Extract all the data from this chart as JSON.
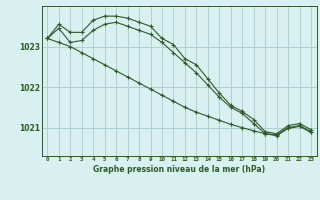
{
  "title": "Graphe pression niveau de la mer (hPa)",
  "bg_color": "#d8f0f0",
  "grid_color": "#b0d0d0",
  "line_color": "#2d5a27",
  "x_ticks": [
    0,
    1,
    2,
    3,
    4,
    5,
    6,
    7,
    8,
    9,
    10,
    11,
    12,
    13,
    14,
    15,
    16,
    17,
    18,
    19,
    20,
    21,
    22,
    23
  ],
  "y_ticks": [
    1021,
    1022,
    1023
  ],
  "ylim": [
    1020.3,
    1024.0
  ],
  "xlim": [
    -0.5,
    23.5
  ],
  "series": [
    {
      "x": [
        0,
        1,
        2,
        3,
        4,
        5,
        6,
        7,
        8,
        9,
        10,
        11,
        12,
        13,
        14,
        15,
        16,
        17,
        18,
        19,
        20,
        21,
        22,
        23
      ],
      "y": [
        1023.2,
        1023.55,
        1023.35,
        1023.35,
        1023.65,
        1023.75,
        1023.75,
        1023.7,
        1023.6,
        1023.5,
        1023.2,
        1023.05,
        1022.7,
        1022.55,
        1022.2,
        1021.85,
        1021.55,
        1021.4,
        1021.2,
        1020.9,
        1020.85,
        1021.05,
        1021.1,
        1020.95
      ]
    },
    {
      "x": [
        0,
        1,
        2,
        3,
        4,
        5,
        6,
        7,
        8,
        9,
        10,
        11,
        12,
        13,
        14,
        15,
        16,
        17,
        18,
        19,
        20,
        21,
        22,
        23
      ],
      "y": [
        1023.2,
        1023.45,
        1023.1,
        1023.15,
        1023.4,
        1023.55,
        1023.6,
        1023.5,
        1023.4,
        1023.3,
        1023.1,
        1022.85,
        1022.6,
        1022.35,
        1022.05,
        1021.75,
        1021.5,
        1021.35,
        1021.1,
        1020.85,
        1020.82,
        1021.0,
        1021.05,
        1020.9
      ]
    },
    {
      "x": [
        0,
        1,
        2,
        3,
        4,
        5,
        6,
        7,
        8,
        9,
        10,
        11,
        12,
        13,
        14,
        15,
        16,
        17,
        18,
        19,
        20,
        21,
        22,
        23
      ],
      "y": [
        1023.2,
        1023.1,
        1023.0,
        1022.85,
        1022.7,
        1022.55,
        1022.4,
        1022.25,
        1022.1,
        1021.95,
        1021.8,
        1021.65,
        1021.5,
        1021.38,
        1021.28,
        1021.18,
        1021.08,
        1021.0,
        1020.92,
        1020.85,
        1020.8,
        1020.98,
        1021.03,
        1020.88
      ]
    }
  ]
}
